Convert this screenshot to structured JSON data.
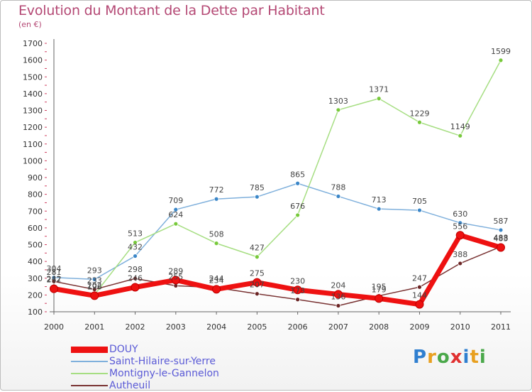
{
  "title": "Evolution du Montant de la Dette par Habitant",
  "subtitle": "(en €)",
  "logo": {
    "text": "Proxiti",
    "colors": [
      "#2f7fd0",
      "#e8a020",
      "#4aa84a",
      "#e03030",
      "#2f7fd0",
      "#e8a020",
      "#4aa84a"
    ]
  },
  "chart_data": {
    "type": "line",
    "title": "Evolution du Montant de la Dette par Habitant",
    "ylabel": "(en €)",
    "x": [
      "2000",
      "2001",
      "2002",
      "2003",
      "2004",
      "2005",
      "2006",
      "2007",
      "2008",
      "2009",
      "2010",
      "2011"
    ],
    "ylim": [
      100,
      1700
    ],
    "yticks": [
      100,
      200,
      300,
      400,
      500,
      600,
      700,
      800,
      900,
      1000,
      1100,
      1200,
      1300,
      1400,
      1500,
      1600,
      1700
    ],
    "grid": false,
    "legend_position": "bottom-left",
    "series": [
      {
        "name": "Saint-Hilaire-sur-Yerre",
        "color": "#3a86c8",
        "line_color": "#7fb0dc",
        "values": [
          304,
          293,
          432,
          709,
          772,
          785,
          865,
          788,
          713,
          705,
          630,
          587
        ]
      },
      {
        "name": "Montigny-le-Gannelon",
        "color": "#77c93a",
        "line_color": "#a6de82",
        "values": [
          242,
          202,
          513,
          624,
          508,
          427,
          676,
          1303,
          1371,
          1229,
          1149,
          1599
        ]
      },
      {
        "name": "Autheuil",
        "color": "#6b2424",
        "line_color": "#7a3434",
        "values": [
          281,
          233,
          298,
          255,
          244,
          207,
          173,
          136,
          195,
          247,
          388,
          488
        ]
      },
      {
        "name": "DOUY",
        "color": "#ee1111",
        "line_color": "#ee1111",
        "values": [
          237,
          196,
          246,
          289,
          234,
          275,
          230,
          204,
          179,
          144,
          556,
          483
        ]
      }
    ],
    "data_labels": [
      {
        "series": 0,
        "values": [
          "304",
          "293",
          "432",
          "709",
          "772",
          "785",
          "865",
          "788",
          "713",
          "705",
          "630",
          "587"
        ]
      },
      {
        "series": 1,
        "values": [
          "242",
          "202",
          "513",
          "624",
          "508",
          "427",
          "676",
          "1303",
          "1371",
          "1229",
          "1149",
          "1599"
        ]
      },
      {
        "series": 2,
        "values": [
          "281",
          "233",
          "298",
          "255",
          "244",
          "207",
          "173",
          "136",
          "195",
          "247",
          "388",
          "488"
        ]
      },
      {
        "series": 3,
        "values": [
          "237",
          "196",
          "246",
          "289",
          "234",
          "275",
          "230",
          "204",
          "179",
          "144",
          "556",
          "483"
        ]
      }
    ]
  }
}
